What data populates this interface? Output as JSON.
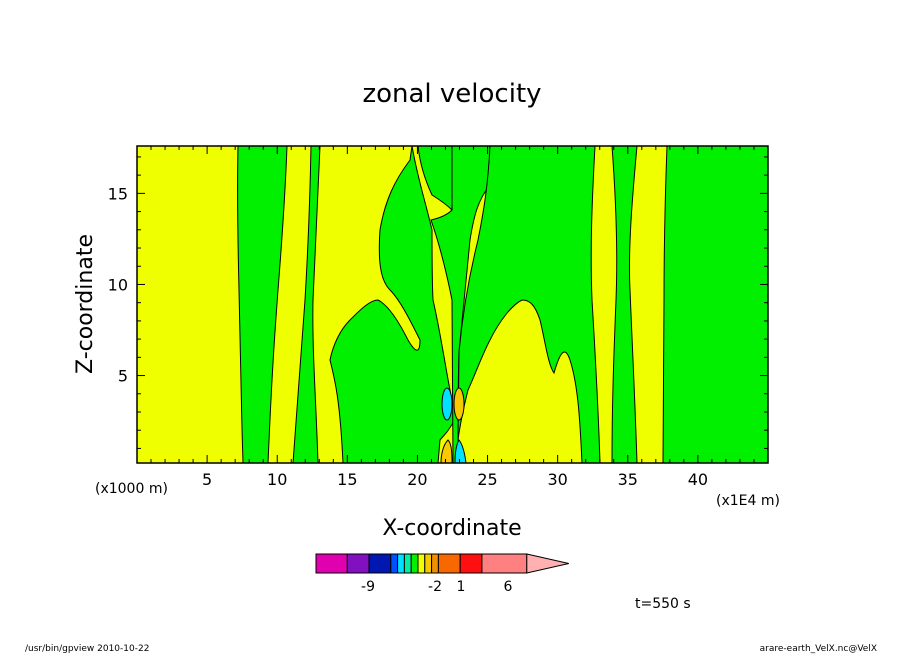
{
  "chart_data": {
    "type": "heatmap",
    "title": "zonal velocity",
    "xlabel": "X-coordinate",
    "ylabel": "Z-coordinate",
    "x_scale_label": "(x1E4 m)",
    "y_scale_label": "(x1000 m)",
    "xlim": [
      0,
      45
    ],
    "ylim": [
      0.2,
      17.6
    ],
    "x_ticks": [
      "5",
      "10",
      "15",
      "20",
      "25",
      "30",
      "35",
      "40"
    ],
    "y_ticks": [
      "5",
      "10",
      "15"
    ],
    "colorbar": {
      "colors": [
        "#e000b0",
        "#8010c0",
        "#0018b0",
        "#0050ff",
        "#00e0ff",
        "#00f0a0",
        "#00f000",
        "#f0ff00",
        "#f8c800",
        "#f09000",
        "#f86800",
        "#ff1010",
        "#ff8080",
        "#ffb0b0"
      ],
      "tick_labels": [
        "-9",
        "-2",
        "1",
        "6"
      ]
    },
    "colors": {
      "green": "#00f000",
      "yellow": "#f0ff00",
      "cyan": "#00e0ff",
      "orange": "#f8c800"
    }
  },
  "annotations": {
    "time": "t=550 s",
    "footer_left": "/usr/bin/gpview  2010-10-22",
    "footer_right": "arare-earth_VelX.nc@VelX"
  }
}
